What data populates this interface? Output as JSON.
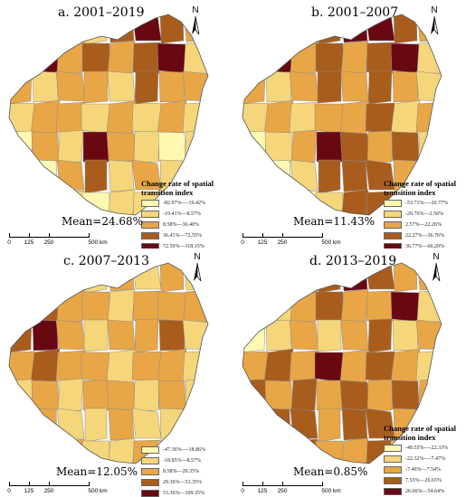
{
  "scale": {
    "ticks": [
      "0",
      "125",
      "250",
      "500 km"
    ]
  },
  "north_label": "N",
  "legend_title": "Change rate of spatial transition index",
  "chart_data": [
    {
      "type": "choropleth",
      "title": "a. 2001–2019",
      "mean": "Mean=24.68%",
      "legend": [
        {
          "label": "-82.97%—-19.42%",
          "color": "#fff8b0"
        },
        {
          "label": "-19.41%—8.57%",
          "color": "#f6d67a"
        },
        {
          "label": "8.58%—36.40%",
          "color": "#e8a646"
        },
        {
          "label": "36.41%—72.55%",
          "color": "#a95d1d"
        },
        {
          "label": "72.56%—118.15%",
          "color": "#6a0812"
        }
      ]
    },
    {
      "type": "choropleth",
      "title": "b. 2001–2007",
      "mean": "Mean=11.43%",
      "legend": [
        {
          "label": "-53.71%—-20.77%",
          "color": "#fff8b0"
        },
        {
          "label": "-20.76%—2.56%",
          "color": "#f6d67a"
        },
        {
          "label": "2.57%—22.26%",
          "color": "#e8a646"
        },
        {
          "label": "22.27%—36.76%",
          "color": "#a95d1d"
        },
        {
          "label": "36.77%—66.20%",
          "color": "#6a0812"
        }
      ]
    },
    {
      "type": "choropleth",
      "title": "c. 2007–2013",
      "mean": "Mean=12.05%",
      "legend": [
        {
          "label": "-47.36%—-18.86%",
          "color": "#fff8b0"
        },
        {
          "label": "-18.85%—8.57%",
          "color": "#f6d67a"
        },
        {
          "label": "8.58%—29.35%",
          "color": "#e8a646"
        },
        {
          "label": "29.36%—53.35%",
          "color": "#a95d1d"
        },
        {
          "label": "53.36%—109.35%",
          "color": "#6a0812"
        }
      ]
    },
    {
      "type": "choropleth",
      "title": "d. 2013–2019",
      "mean": "Mean=0.85%",
      "legend": [
        {
          "label": "-49.55%—-22.33%",
          "color": "#fff8b0"
        },
        {
          "label": "-22.32%—-7.47%",
          "color": "#f6d67a"
        },
        {
          "label": "-7.46%—7.54%",
          "color": "#e8a646"
        },
        {
          "label": "7.55%—26.65%",
          "color": "#a95d1d"
        },
        {
          "label": "26.66%—54.64%",
          "color": "#6a0812"
        }
      ]
    }
  ]
}
